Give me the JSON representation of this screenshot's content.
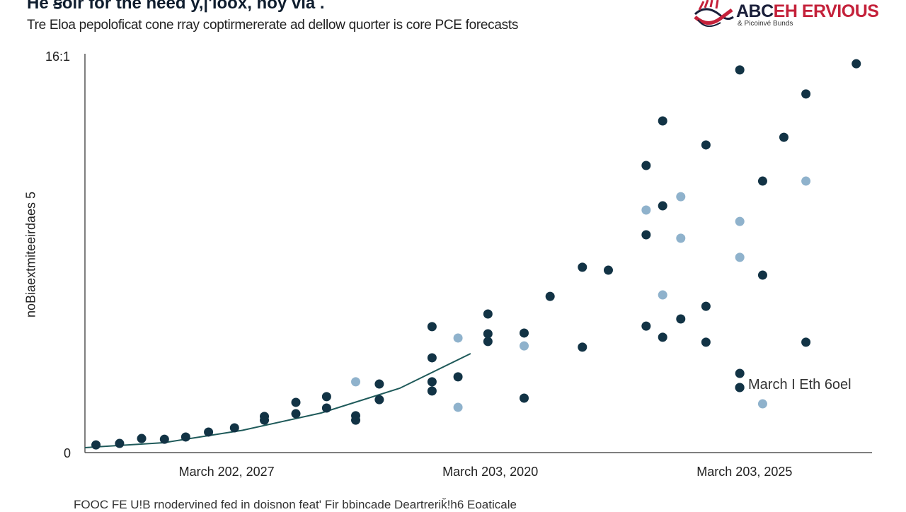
{
  "title": "He ꞩoir for the need y,|'loox, noy via .",
  "subtitle": "Tre Eloa pepoloficat cone rray coptirmererate ad dellow quorter is core PCE forecasts",
  "logo": {
    "text_dark": "ABC",
    "text_red": "EH ERVIOUS",
    "tagline": "& Picoinvé Bunds",
    "colors": {
      "dark": "#1a1f3a",
      "red": "#c4213a"
    }
  },
  "footer": "FOOC FE U!B rnodervined fed in doisnon feat' Fir bbincade Deartreriǩ!h6  Eoaticale",
  "chart_data": {
    "type": "scatter",
    "title": "",
    "ylabel": "noBiaextmiteeirdaes 5",
    "xlabel": "",
    "ylim": [
      0,
      16
    ],
    "xlim": [
      0,
      10
    ],
    "yticks": [
      {
        "value": 0,
        "label": "0"
      },
      {
        "value": 16,
        "label": "16:1"
      }
    ],
    "xticks": [
      {
        "value": 1.8,
        "label": "March 202, 2027"
      },
      {
        "value": 5.15,
        "label": "March 203, 2020"
      },
      {
        "value": 8.38,
        "label": "March 203, 2025"
      }
    ],
    "grid": false,
    "colors": {
      "dark": "#123345",
      "light": "#8fb2cc",
      "trend": "#1f5a5a",
      "axis": "#555555"
    },
    "series": [
      {
        "style": "dark",
        "points": [
          [
            0.14,
            0.31
          ],
          [
            0.44,
            0.37
          ],
          [
            0.72,
            0.57
          ],
          [
            1.01,
            0.54
          ],
          [
            1.28,
            0.63
          ],
          [
            1.57,
            0.83
          ],
          [
            1.9,
            1.0
          ],
          [
            2.28,
            1.46
          ],
          [
            2.28,
            1.31
          ],
          [
            2.68,
            2.03
          ],
          [
            2.68,
            1.57
          ],
          [
            3.07,
            2.26
          ],
          [
            3.07,
            1.8
          ],
          [
            3.44,
            1.49
          ],
          [
            3.44,
            1.31
          ],
          [
            3.74,
            2.77
          ],
          [
            3.74,
            2.14
          ],
          [
            4.41,
            5.09
          ],
          [
            4.41,
            3.83
          ],
          [
            4.41,
            2.86
          ],
          [
            4.41,
            2.49
          ],
          [
            4.74,
            3.06
          ],
          [
            5.12,
            5.6
          ],
          [
            5.12,
            4.8
          ],
          [
            5.12,
            4.49
          ],
          [
            5.58,
            4.83
          ],
          [
            5.58,
            2.2
          ],
          [
            5.91,
            6.31
          ],
          [
            6.32,
            7.49
          ],
          [
            6.32,
            4.26
          ],
          [
            6.65,
            7.37
          ],
          [
            7.13,
            11.6
          ],
          [
            7.13,
            8.8
          ],
          [
            7.13,
            5.11
          ],
          [
            7.34,
            13.4
          ],
          [
            7.34,
            9.97
          ],
          [
            7.34,
            4.66
          ],
          [
            7.57,
            5.4
          ],
          [
            7.89,
            12.43
          ],
          [
            7.89,
            5.91
          ],
          [
            7.89,
            4.46
          ],
          [
            8.32,
            15.46
          ],
          [
            8.32,
            3.2
          ],
          [
            8.32,
            2.63
          ],
          [
            8.61,
            10.97
          ],
          [
            8.61,
            7.17
          ],
          [
            8.88,
            12.74
          ],
          [
            9.16,
            14.49
          ],
          [
            9.16,
            4.46
          ],
          [
            9.8,
            15.71
          ]
        ]
      },
      {
        "style": "light",
        "points": [
          [
            3.44,
            2.86
          ],
          [
            4.74,
            4.63
          ],
          [
            4.74,
            1.83
          ],
          [
            5.58,
            4.31
          ],
          [
            7.13,
            9.8
          ],
          [
            7.34,
            6.37
          ],
          [
            7.57,
            10.34
          ],
          [
            7.57,
            8.66
          ],
          [
            8.32,
            9.34
          ],
          [
            8.32,
            7.89
          ],
          [
            8.61,
            1.97
          ],
          [
            9.16,
            10.97
          ]
        ]
      }
    ],
    "trend_line": [
      [
        0,
        0.2
      ],
      [
        1,
        0.4
      ],
      [
        2,
        0.9
      ],
      [
        3,
        1.6
      ],
      [
        3.5,
        2.1
      ],
      [
        4,
        2.6
      ],
      [
        4.9,
        4.0
      ]
    ],
    "annotations": [
      {
        "text": "March I Eth 6oel"
      }
    ]
  }
}
